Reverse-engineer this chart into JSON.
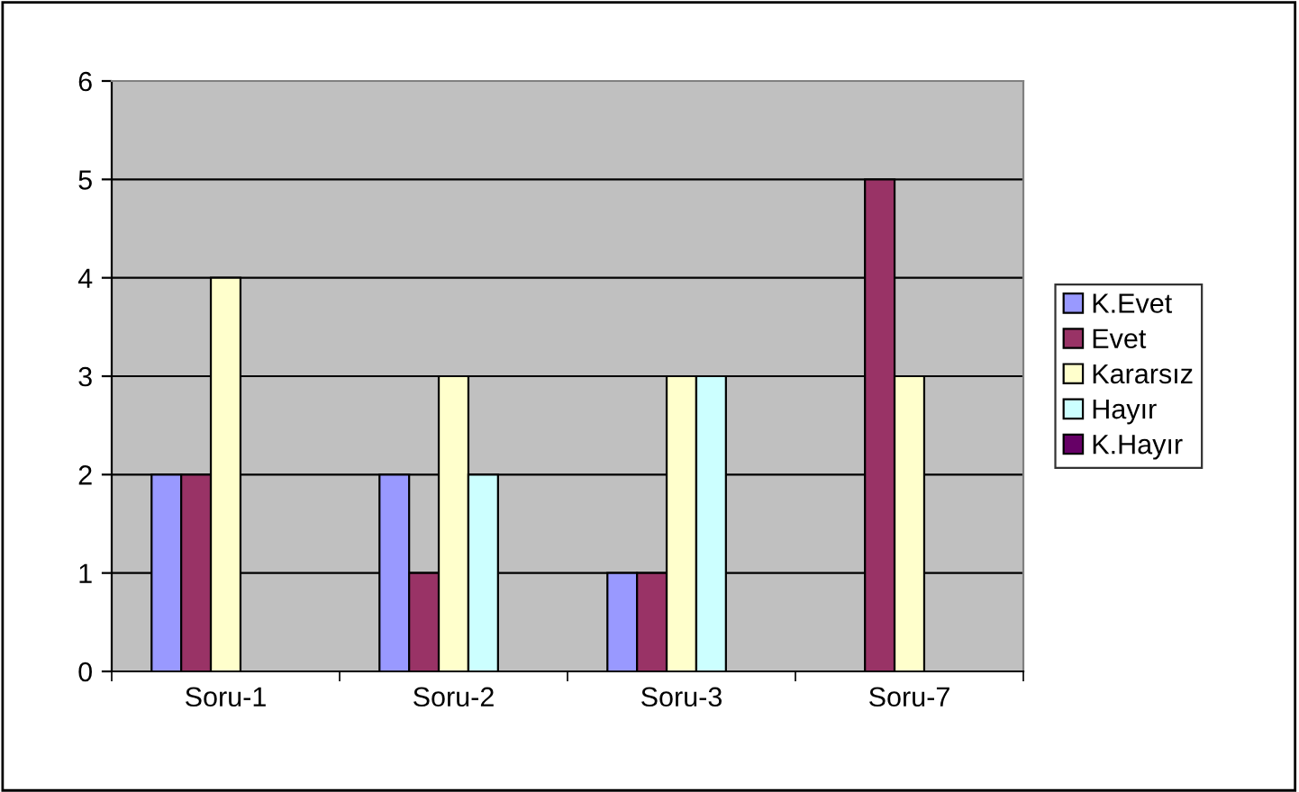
{
  "chart_data": {
    "type": "bar",
    "categories": [
      "Soru-1",
      "Soru-2",
      "Soru-3",
      "Soru-7"
    ],
    "series": [
      {
        "name": "K.Evet",
        "color": "#9999ff",
        "values": [
          2,
          2,
          1,
          null
        ]
      },
      {
        "name": "Evet",
        "color": "#993366",
        "values": [
          2,
          1,
          1,
          5
        ]
      },
      {
        "name": "Kararsız",
        "color": "#ffffcc",
        "values": [
          4,
          3,
          3,
          3
        ]
      },
      {
        "name": "Hayır",
        "color": "#ccffff",
        "values": [
          null,
          2,
          3,
          null
        ]
      },
      {
        "name": "K.Hayır",
        "color": "#660066",
        "values": [
          null,
          null,
          null,
          null
        ]
      }
    ],
    "ylim": [
      0,
      6
    ],
    "yticks": [
      0,
      1,
      2,
      3,
      4,
      5,
      6
    ],
    "grid": "y",
    "legend": "right"
  }
}
